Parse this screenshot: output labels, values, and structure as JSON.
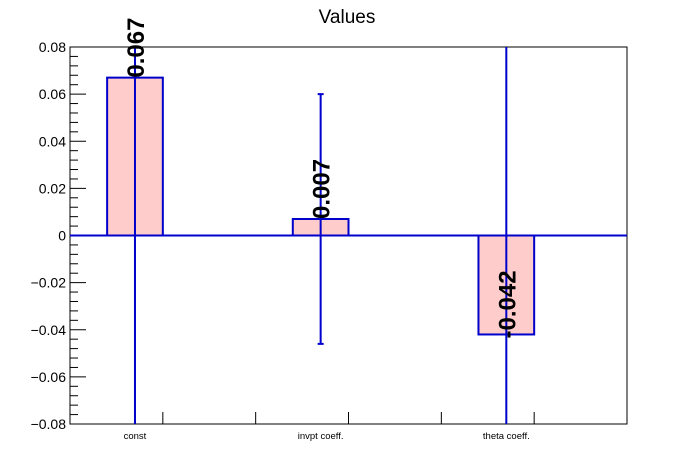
{
  "chart_data": {
    "type": "bar",
    "title": "Values",
    "xlabel": "",
    "ylabel": "",
    "categories": [
      "const",
      "invpt coeff.",
      "theta coeff."
    ],
    "values": [
      0.067,
      0.007,
      -0.042
    ],
    "value_labels": [
      "0.067",
      "0.007",
      "-0.042"
    ],
    "error_bars": [
      {
        "low": -0.08,
        "high": 0.08
      },
      {
        "low": -0.046,
        "high": 0.06
      },
      {
        "low": -0.08,
        "high": 0.08
      }
    ],
    "ylim": [
      -0.08,
      0.08
    ],
    "yticks": [
      {
        "value": 0.08,
        "label": "0.08"
      },
      {
        "value": 0.06,
        "label": "0.06"
      },
      {
        "value": 0.04,
        "label": "0.04"
      },
      {
        "value": 0.02,
        "label": "0.02"
      },
      {
        "value": 0,
        "label": "0"
      },
      {
        "value": -0.02,
        "label": "−0.02"
      },
      {
        "value": -0.04,
        "label": "−0.04"
      },
      {
        "value": -0.06,
        "label": "−0.06"
      },
      {
        "value": -0.08,
        "label": "−0.08"
      }
    ],
    "grid": false,
    "legend": "none",
    "colors": {
      "bar_fill": "#ffcccc",
      "bar_edge": "#0000cc",
      "zero_line": "#0000cc",
      "error_bar": "#0000cc",
      "axis": "#000000"
    }
  }
}
